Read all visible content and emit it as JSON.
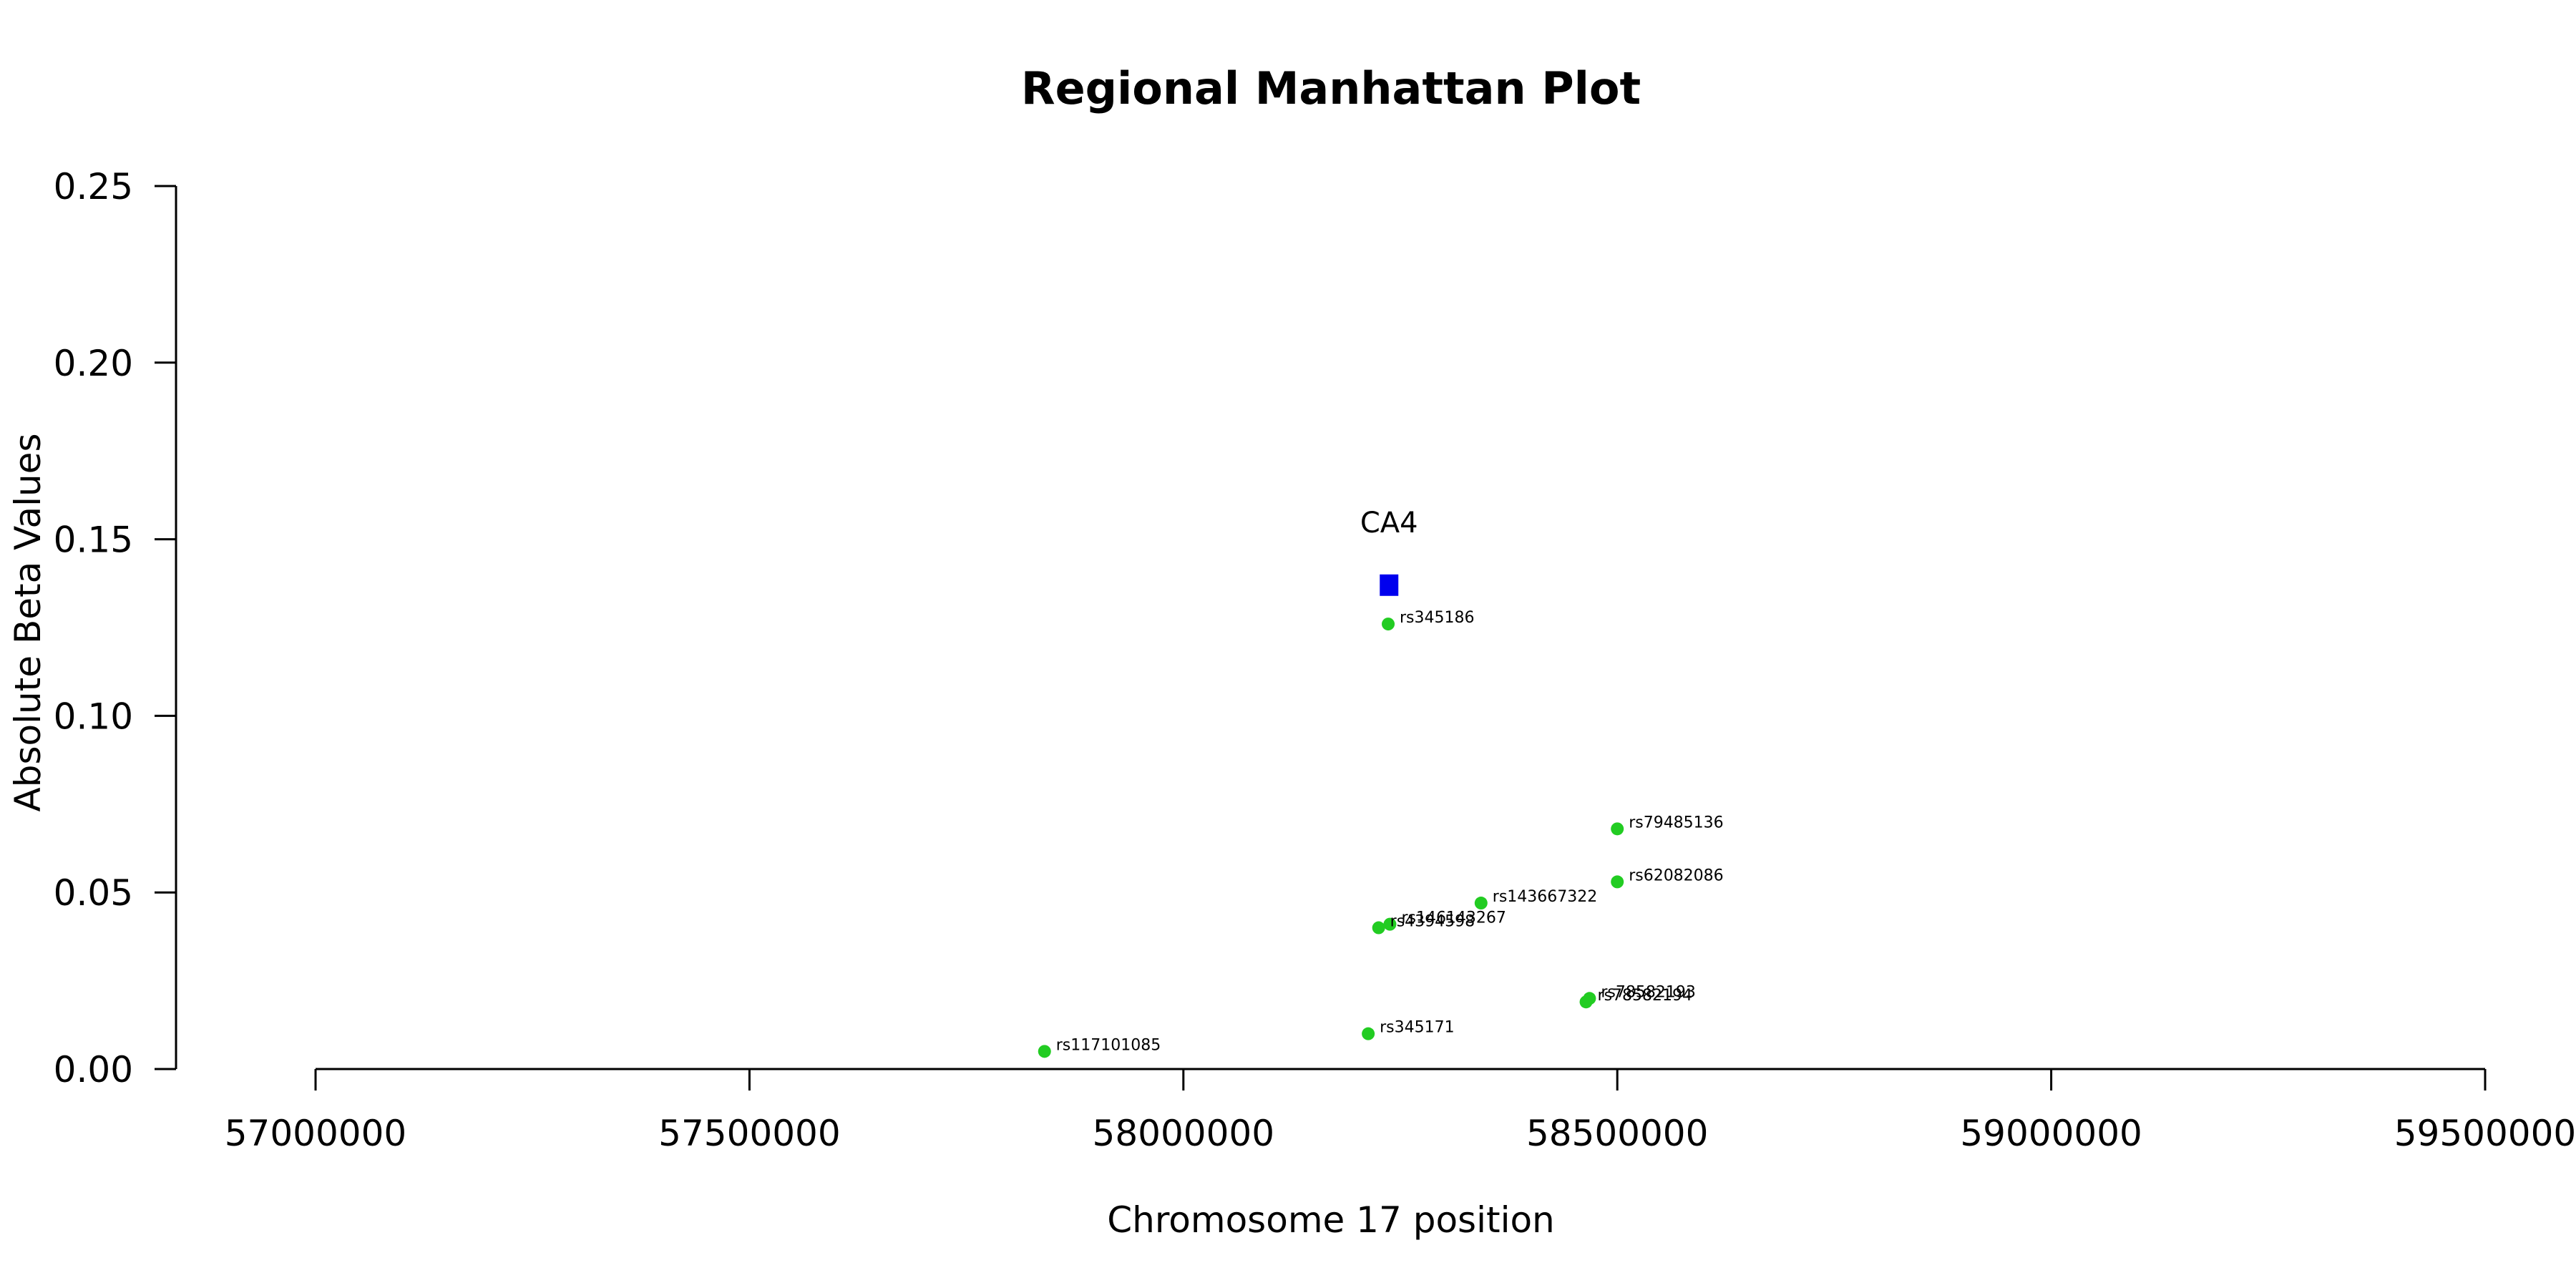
{
  "chart_data": {
    "type": "scatter",
    "title": "Regional Manhattan Plot",
    "xlabel": "Chromosome 17 position",
    "ylabel": "Absolute Beta Values",
    "xlim": [
      57000000,
      59500000
    ],
    "ylim": [
      0,
      0.25
    ],
    "x_ticks": [
      57000000,
      57500000,
      58000000,
      58500000,
      59000000,
      59500000
    ],
    "x_tick_labels": [
      "57000000",
      "57500000",
      "58000000",
      "58500000",
      "59000000",
      "59500000"
    ],
    "y_ticks": [
      0.0,
      0.05,
      0.1,
      0.15,
      0.2,
      0.25
    ],
    "y_tick_labels": [
      "0.00",
      "0.05",
      "0.10",
      "0.15",
      "0.20",
      "0.25"
    ],
    "grid": false,
    "colors": {
      "snp": "#22cc22",
      "gene": "#0000ee"
    },
    "gene": {
      "name": "CA4",
      "x": 58237000,
      "y": 0.137
    },
    "points": [
      {
        "name": "rs345186",
        "x": 58236000,
        "y": 0.126
      },
      {
        "name": "rs79485136",
        "x": 58500000,
        "y": 0.068
      },
      {
        "name": "rs62082086",
        "x": 58500000,
        "y": 0.053
      },
      {
        "name": "rs143667322",
        "x": 58343000,
        "y": 0.047
      },
      {
        "name": "rs146143267",
        "x": 58238000,
        "y": 0.041
      },
      {
        "name": "rs4394598",
        "x": 58225000,
        "y": 0.04
      },
      {
        "name": "rs78582193",
        "x": 58468000,
        "y": 0.02
      },
      {
        "name": "rs78582194",
        "x": 58464000,
        "y": 0.019
      },
      {
        "name": "rs345171",
        "x": 58213000,
        "y": 0.01
      },
      {
        "name": "rs117101085",
        "x": 57840000,
        "y": 0.005
      }
    ]
  }
}
